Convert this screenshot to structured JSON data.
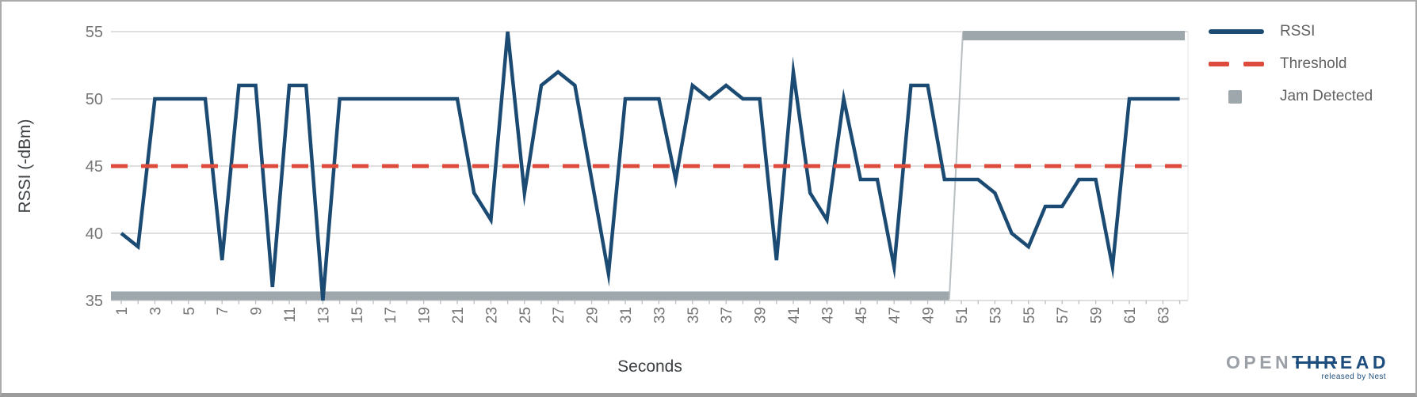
{
  "axes": {
    "y_title": "RSSI (-dBm)",
    "x_title": "Seconds",
    "y_ticks": [
      55,
      50,
      45,
      40,
      35
    ],
    "x_tick_labels": [
      "1",
      "3",
      "5",
      "7",
      "9",
      "11",
      "13",
      "15",
      "17",
      "19",
      "21",
      "23",
      "25",
      "27",
      "29",
      "31",
      "33",
      "35",
      "37",
      "39",
      "41",
      "43",
      "45",
      "47",
      "49",
      "51",
      "53",
      "55",
      "57",
      "59",
      "61",
      "63"
    ]
  },
  "legend": {
    "items": [
      {
        "label": "RSSI",
        "swatch": "line",
        "color": "#1b4a73"
      },
      {
        "label": "Threshold",
        "swatch": "dashed-line",
        "color": "#dc4b3b"
      },
      {
        "label": "Jam Detected",
        "swatch": "square",
        "color": "#9ea7ab"
      }
    ]
  },
  "logo": {
    "part1": "OPEN",
    "part2": "THREAD",
    "tagline": "released by Nest"
  },
  "colors": {
    "rssi": "#1b4a73",
    "threshold": "#dc4b3b",
    "jam": "#9ea7ab",
    "jam_connector": "#b9bec1",
    "gridline": "#cccccc",
    "tick": "#bcc0c2",
    "tick_label": "#757575",
    "axis_title": "#3c4043"
  },
  "chart_data": {
    "type": "line",
    "title": "",
    "xlabel": "Seconds",
    "ylabel": "RSSI (-dBm)",
    "xlim": [
      1,
      64
    ],
    "ylim": [
      35,
      55
    ],
    "grid": "horizontal",
    "legend_position": "right",
    "x": [
      1,
      2,
      3,
      4,
      5,
      6,
      7,
      8,
      9,
      10,
      11,
      12,
      13,
      14,
      15,
      16,
      17,
      18,
      19,
      20,
      21,
      22,
      23,
      24,
      25,
      26,
      27,
      28,
      29,
      30,
      31,
      32,
      33,
      34,
      35,
      36,
      37,
      38,
      39,
      40,
      41,
      42,
      43,
      44,
      45,
      46,
      47,
      48,
      49,
      50,
      51,
      52,
      53,
      54,
      55,
      56,
      57,
      58,
      59,
      60,
      61,
      62,
      63,
      64
    ],
    "series": [
      {
        "name": "RSSI",
        "type": "line",
        "color": "#1b4a73",
        "values": [
          40,
          39,
          50,
          50,
          50,
          50,
          38,
          51,
          51,
          36,
          51,
          51,
          35,
          50,
          50,
          50,
          50,
          50,
          50,
          50,
          50,
          43,
          41,
          55,
          43,
          51,
          52,
          51,
          44,
          37,
          50,
          50,
          50,
          44,
          51,
          50,
          51,
          50,
          50,
          38,
          52,
          43,
          41,
          50,
          44,
          44,
          37.5,
          51,
          51,
          44,
          44,
          44,
          43,
          40,
          39,
          42,
          42,
          44,
          44,
          37.5,
          50,
          50,
          50,
          50
        ]
      },
      {
        "name": "Threshold",
        "type": "line",
        "style": "dashed",
        "color": "#dc4b3b",
        "constant_value": 45
      },
      {
        "name": "Jam Detected",
        "type": "step",
        "color": "#9ea7ab",
        "values": [
          35,
          35,
          35,
          35,
          35,
          35,
          35,
          35,
          35,
          35,
          35,
          35,
          35,
          35,
          35,
          35,
          35,
          35,
          35,
          35,
          35,
          35,
          35,
          35,
          35,
          35,
          35,
          35,
          35,
          35,
          35,
          35,
          35,
          35,
          35,
          35,
          35,
          35,
          35,
          35,
          35,
          35,
          35,
          35,
          35,
          35,
          35,
          35,
          35,
          35,
          55,
          55,
          55,
          55,
          55,
          55,
          55,
          55,
          55,
          55,
          55,
          55,
          55,
          55
        ]
      }
    ]
  }
}
